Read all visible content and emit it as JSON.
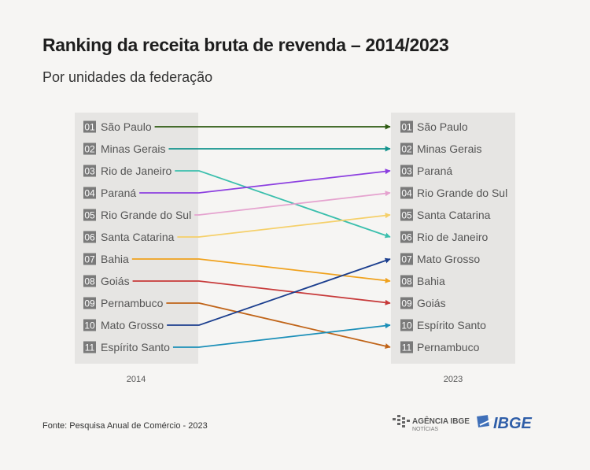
{
  "title": "Ranking da receita bruta de revenda – 2014/2023",
  "subtitle": "Por unidades da federação",
  "source": "Fonte: Pesquisa Anual de Comércio - 2023",
  "logos": {
    "agencia_line1": "AGÊNCIA IBGE",
    "agencia_line2": "NOTÍCIAS",
    "ibge": "IBGE"
  },
  "chart_data": {
    "type": "slope",
    "title": "Ranking da receita bruta de revenda – 2014/2023",
    "subtitle": "Por unidades da federação",
    "columns": [
      "2014",
      "2023"
    ],
    "rank_labels": [
      "01",
      "02",
      "03",
      "04",
      "05",
      "06",
      "07",
      "08",
      "09",
      "10",
      "11"
    ],
    "series": [
      {
        "name": "São Paulo",
        "rank_2014": 1,
        "rank_2023": 1,
        "color": "#2e5b12"
      },
      {
        "name": "Minas Gerais",
        "rank_2014": 2,
        "rank_2023": 2,
        "color": "#13938d"
      },
      {
        "name": "Rio de Janeiro",
        "rank_2014": 3,
        "rank_2023": 6,
        "color": "#3bbfad"
      },
      {
        "name": "Paraná",
        "rank_2014": 4,
        "rank_2023": 3,
        "color": "#8c3fe0"
      },
      {
        "name": "Rio Grande do Sul",
        "rank_2014": 5,
        "rank_2023": 4,
        "color": "#e5a3cf"
      },
      {
        "name": "Santa Catarina",
        "rank_2014": 6,
        "rank_2023": 5,
        "color": "#f5d06a"
      },
      {
        "name": "Bahia",
        "rank_2014": 7,
        "rank_2023": 8,
        "color": "#f0a21e"
      },
      {
        "name": "Goiás",
        "rank_2014": 8,
        "rank_2023": 9,
        "color": "#c73a3a"
      },
      {
        "name": "Pernambuco",
        "rank_2014": 9,
        "rank_2023": 11,
        "color": "#c06418"
      },
      {
        "name": "Mato Grosso",
        "rank_2014": 10,
        "rank_2023": 7,
        "color": "#1b3e8e"
      },
      {
        "name": "Espírito Santo",
        "rank_2014": 11,
        "rank_2023": 10,
        "color": "#1b8fb8"
      }
    ]
  }
}
